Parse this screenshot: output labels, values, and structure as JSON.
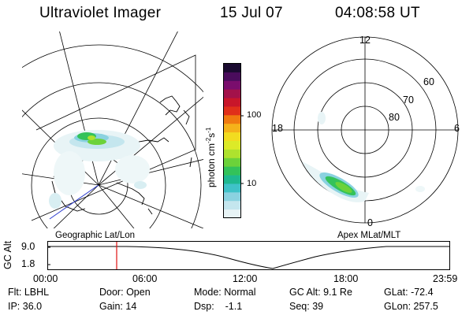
{
  "header": {
    "title": "Ultraviolet Imager",
    "date": "15 Jul 07",
    "time": "04:08:58 UT"
  },
  "colorbar": {
    "unit_prefix": "photon cm",
    "unit_exp1": "-2",
    "unit_mid": "s",
    "unit_exp2": "-1",
    "ticks": [
      "100",
      "10"
    ],
    "colors": [
      "#1a0a30",
      "#4a0c5c",
      "#7a0d6d",
      "#a3124a",
      "#c8162a",
      "#e0301a",
      "#f07a10",
      "#f5b21a",
      "#f2dc20",
      "#dcea28",
      "#aee22e",
      "#6cd23a",
      "#33c25a",
      "#1fb890",
      "#3fc2c8",
      "#8ad2e0",
      "#c4e6ee",
      "#e8f4f6"
    ]
  },
  "left_panel": {
    "label": "Geographic Lat/Lon"
  },
  "right_panel": {
    "label": "Apex MLat/MLT",
    "mlt_labels": {
      "top": "12",
      "left": "18",
      "right": "6",
      "bottom": "0"
    },
    "lat_labels": [
      "60",
      "70",
      "80"
    ]
  },
  "timeline": {
    "ylabel": "GC Alt",
    "yticks": [
      "9.0",
      "1.8"
    ],
    "xticks": [
      "00:00",
      "06:00",
      "12:00",
      "18:00",
      "23:59"
    ],
    "marker_time": "04:08"
  },
  "info": {
    "row1": [
      {
        "key": "Flt:",
        "val": "LBHL"
      },
      {
        "key": "Door:",
        "val": "Open"
      },
      {
        "key": "Mode:",
        "val": "Normal"
      },
      {
        "key": "GC Alt:",
        "val": "9.1 Re"
      },
      {
        "key": "GLat:",
        "val": "-72.4"
      }
    ],
    "row2": [
      {
        "key": "IP:",
        "val": "36.0"
      },
      {
        "key": "Gain:",
        "val": "14"
      },
      {
        "key": "Dsp:",
        "val": "-1.1"
      },
      {
        "key": "Seq:",
        "val": "39"
      },
      {
        "key": "GLon:",
        "val": "257.5"
      }
    ]
  }
}
